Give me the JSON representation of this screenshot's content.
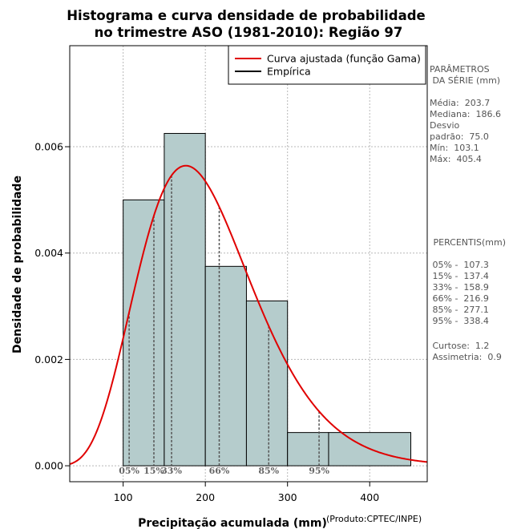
{
  "chart_data": {
    "type": "histogram",
    "title": "Histograma e curva densidade de probabilidade",
    "subtitle": "no trimestre ASO (1981-2010): Região 97",
    "xlabel": "Precipitação acumulada (mm)",
    "ylabel": "Densidade de probabilidade",
    "credit": "(Produto:CPTEC/INPE)",
    "xlim": [
      35,
      470
    ],
    "ylim": [
      -0.0003,
      0.0079
    ],
    "x_ticks": [
      100,
      200,
      300,
      400
    ],
    "y_ticks": [
      0.0,
      0.002,
      0.004,
      0.006
    ],
    "y_tick_labels": [
      "0.000",
      "0.002",
      "0.004",
      "0.006"
    ],
    "grid": true,
    "legend_position": "top-right",
    "legend": [
      {
        "label": "Curva ajustada (função Gama)",
        "color": "#e00000"
      },
      {
        "label": "Empírica",
        "color": "#000000"
      }
    ],
    "bins": [
      {
        "x0": 100,
        "x1": 150,
        "density": 0.005
      },
      {
        "x0": 150,
        "x1": 200,
        "density": 0.00625
      },
      {
        "x0": 200,
        "x1": 250,
        "density": 0.00375
      },
      {
        "x0": 250,
        "x1": 300,
        "density": 0.0031
      },
      {
        "x0": 300,
        "x1": 350,
        "density": 0.000625
      },
      {
        "x0": 350,
        "x1": 450,
        "density": 0.000625
      }
    ],
    "gamma_fit": {
      "shape": 7.38,
      "rate": 0.0362
    },
    "percentile_marks": [
      {
        "label": "05%",
        "x": 107.3
      },
      {
        "label": "15%",
        "x": 137.4
      },
      {
        "label": "33%",
        "x": 158.9
      },
      {
        "label": "66%",
        "x": 216.9
      },
      {
        "label": "85%",
        "x": 277.1
      },
      {
        "label": "95%",
        "x": 338.4
      }
    ],
    "colors": {
      "bar_fill": "#b5cccc",
      "curve": "#e00000",
      "grid": "#b8b8b8",
      "percentile_line": "#555555"
    }
  },
  "side_panel": {
    "params_title_1": "PARÂMETROS",
    "params_title_2": " DA SÉRIE (mm)",
    "media": "Média:  203.7",
    "mediana": "Mediana:  186.6",
    "desvio_1": "Desvio",
    "desvio_2": "padrão:  75.0",
    "min": "Mín:  103.1",
    "max": "Máx:  405.4",
    "percentis_title": " PERCENTIS(mm)",
    "p05": " 05% -  107.3",
    "p15": " 15% -  137.4",
    "p33": " 33% -  158.9",
    "p66": " 66% -  216.9",
    "p85": " 85% -  277.1",
    "p95": " 95% -  338.4",
    "curtose": " Curtose:  1.2",
    "assimetria": " Assimetria:  0.9"
  }
}
